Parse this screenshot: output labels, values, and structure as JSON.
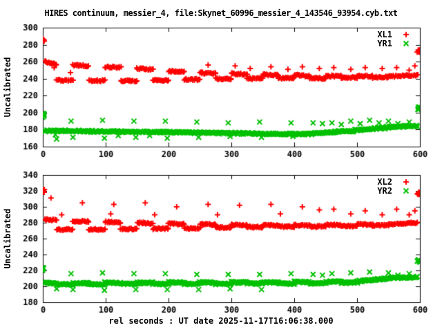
{
  "title": "HIRES continuum, messier_4, file:Skynet_60996_messier_4_143546_93954.cyb.txt",
  "xlabel": "rel seconds : UT date 2025-11-17T16:06:38.000",
  "background": "#ffffff",
  "text_color": "#000000",
  "chart_data": [
    {
      "type": "scatter",
      "panel": "top",
      "ylabel": "Uncalibrated",
      "xlim": [
        0,
        600
      ],
      "ylim": [
        160,
        300
      ],
      "xticks": [
        0,
        100,
        200,
        300,
        400,
        500,
        600
      ],
      "yticks": [
        160,
        180,
        200,
        220,
        240,
        260,
        280,
        300
      ],
      "grid": false,
      "legend_position": "top-right-inside",
      "series": [
        {
          "name": "XL1",
          "marker": "plus",
          "color": "#ff0000",
          "plateaus": [
            [
              3,
              22,
              260,
              257
            ],
            [
              22,
              48,
              238,
              238
            ],
            [
              48,
              73,
              256,
              255
            ],
            [
              73,
              99,
              237.5,
              237.5
            ],
            [
              99,
              124,
              254,
              253
            ],
            [
              124,
              150,
              237.5,
              237.5
            ],
            [
              150,
              175,
              252,
              251
            ],
            [
              175,
              200,
              238,
              238
            ],
            [
              200,
              225,
              249,
              248
            ],
            [
              225,
              250,
              239,
              239
            ],
            [
              250,
              275,
              247,
              246
            ],
            [
              275,
              300,
              240,
              240
            ],
            [
              300,
              325,
              246,
              245
            ],
            [
              325,
              350,
              240,
              240
            ],
            [
              350,
              375,
              245,
              244
            ],
            [
              375,
              400,
              240.5,
              240.5
            ],
            [
              400,
              425,
              244,
              243
            ],
            [
              425,
              450,
              240.5,
              240.5
            ],
            [
              450,
              475,
              243,
              243
            ],
            [
              475,
              500,
              241,
              241
            ],
            [
              500,
              525,
              243,
              243
            ],
            [
              525,
              550,
              241.5,
              242
            ],
            [
              550,
              596,
              242.5,
              244
            ]
          ],
          "outliers": [
            [
              18,
              253
            ],
            [
              44,
              247
            ],
            [
              263,
              256
            ],
            [
              306,
              255
            ],
            [
              330,
              252
            ],
            [
              363,
              254
            ],
            [
              390,
              251
            ],
            [
              413,
              254
            ],
            [
              440,
              252
            ],
            [
              463,
              253
            ],
            [
              490,
              251
            ],
            [
              513,
              253
            ],
            [
              540,
              252
            ],
            [
              563,
              253
            ],
            [
              583,
              250
            ],
            [
              592,
              255
            ]
          ],
          "clusters": [
            [
              1,
              285,
              6,
              1.5,
              2.2
            ],
            [
              598,
              272,
              10,
              2.5,
              1.8
            ]
          ]
        },
        {
          "name": "YR1",
          "marker": "cross",
          "color": "#00c000",
          "plateaus": [
            [
              3,
              60,
              178.5,
              178.5
            ],
            [
              60,
              120,
              178,
              178
            ],
            [
              120,
              200,
              177.5,
              177
            ],
            [
              200,
              280,
              177,
              176
            ],
            [
              280,
              360,
              176,
              175
            ],
            [
              360,
              430,
              175,
              175
            ],
            [
              430,
              465,
              176,
              177
            ],
            [
              465,
              495,
              177.5,
              178.5
            ],
            [
              495,
              520,
              179.5,
              180.5
            ],
            [
              520,
              548,
              181,
              182
            ],
            [
              548,
              575,
              183,
              183.5
            ],
            [
              575,
              596,
              184,
              184
            ]
          ],
          "outliers": [
            [
              45,
              190
            ],
            [
              20,
              174
            ],
            [
              22,
              169
            ],
            [
              48,
              171
            ],
            [
              95,
              191
            ],
            [
              98,
              170
            ],
            [
              120,
              173
            ],
            [
              145,
              190
            ],
            [
              148,
              171
            ],
            [
              170,
              173
            ],
            [
              195,
              190
            ],
            [
              198,
              170
            ],
            [
              245,
              189
            ],
            [
              248,
              171
            ],
            [
              295,
              188
            ],
            [
              298,
              172
            ],
            [
              345,
              189
            ],
            [
              348,
              171
            ],
            [
              395,
              188
            ],
            [
              398,
              172
            ],
            [
              430,
              188
            ],
            [
              445,
              187
            ],
            [
              460,
              188
            ],
            [
              475,
              186
            ],
            [
              490,
              190
            ],
            [
              505,
              187
            ],
            [
              520,
              191
            ],
            [
              535,
              188
            ],
            [
              550,
              190
            ],
            [
              565,
              187
            ],
            [
              583,
              189
            ]
          ],
          "clusters": [
            [
              1,
              197,
              7,
              1.8,
              2.5
            ],
            [
              598,
              205,
              8,
              2.2,
              1.8
            ]
          ]
        }
      ]
    },
    {
      "type": "scatter",
      "panel": "bottom",
      "ylabel": "Uncalibrated",
      "xlim": [
        0,
        600
      ],
      "ylim": [
        180,
        340
      ],
      "xticks": [
        0,
        100,
        200,
        300,
        400,
        500,
        600
      ],
      "yticks": [
        180,
        200,
        220,
        240,
        260,
        280,
        300,
        320,
        340
      ],
      "grid": false,
      "legend_position": "top-right-inside",
      "series": [
        {
          "name": "XL2",
          "marker": "plus",
          "color": "#ff0000",
          "plateaus": [
            [
              3,
              22,
              284,
              283
            ],
            [
              22,
              48,
              271.5,
              271.5
            ],
            [
              48,
              73,
              282,
              281.5
            ],
            [
              73,
              99,
              271.5,
              271.5
            ],
            [
              99,
              124,
              281,
              280
            ],
            [
              124,
              150,
              272,
              272
            ],
            [
              150,
              175,
              280,
              279
            ],
            [
              175,
              200,
              272.5,
              272.5
            ],
            [
              200,
              225,
              279,
              278
            ],
            [
              225,
              250,
              273,
              273
            ],
            [
              250,
              275,
              278,
              277.5
            ],
            [
              275,
              300,
              274,
              274
            ],
            [
              300,
              325,
              277.5,
              277
            ],
            [
              325,
              350,
              274.5,
              274.5
            ],
            [
              350,
              375,
              277,
              276.5
            ],
            [
              375,
              400,
              275,
              275
            ],
            [
              400,
              425,
              277,
              276.5
            ],
            [
              425,
              450,
              275,
              275.5
            ],
            [
              450,
              475,
              277.5,
              277
            ],
            [
              475,
              500,
              276,
              276
            ],
            [
              500,
              525,
              278,
              277.5
            ],
            [
              525,
              550,
              276.5,
              277
            ],
            [
              550,
              596,
              278,
              280
            ]
          ],
          "outliers": [
            [
              13,
              311
            ],
            [
              30,
              290
            ],
            [
              63,
              305
            ],
            [
              108,
              291
            ],
            [
              113,
              303
            ],
            [
              163,
              305
            ],
            [
              178,
              290
            ],
            [
              213,
              300
            ],
            [
              263,
              303
            ],
            [
              278,
              290
            ],
            [
              313,
              302
            ],
            [
              363,
              303
            ],
            [
              378,
              291
            ],
            [
              413,
              300
            ],
            [
              440,
              296
            ],
            [
              463,
              297
            ],
            [
              490,
              291
            ],
            [
              513,
              295
            ],
            [
              540,
              290
            ],
            [
              563,
              297
            ],
            [
              583,
              290
            ],
            [
              592,
              295
            ]
          ],
          "clusters": [
            [
              1,
              320,
              6,
              1.5,
              2.2
            ],
            [
              598,
              317,
              10,
              2.5,
              1.8
            ]
          ]
        },
        {
          "name": "YR2",
          "marker": "cross",
          "color": "#00c000",
          "plateaus": [
            [
              3,
              22,
              204,
              204
            ],
            [
              22,
              48,
              202.5,
              202.5
            ],
            [
              48,
              73,
              204,
              204
            ],
            [
              73,
              99,
              202.5,
              202.5
            ],
            [
              99,
              124,
              204.5,
              204
            ],
            [
              124,
              150,
              203,
              203
            ],
            [
              150,
              175,
              204.5,
              204.5
            ],
            [
              175,
              200,
              203,
              203
            ],
            [
              200,
              225,
              205,
              204.5
            ],
            [
              225,
              250,
              203,
              203
            ],
            [
              250,
              275,
              205,
              204.5
            ],
            [
              275,
              300,
              203,
              203
            ],
            [
              300,
              325,
              205,
              205
            ],
            [
              325,
              350,
              203.5,
              203.5
            ],
            [
              350,
              375,
              205,
              205
            ],
            [
              375,
              400,
              203.5,
              203.5
            ],
            [
              400,
              425,
              205.5,
              205
            ],
            [
              425,
              450,
              203.5,
              204
            ],
            [
              450,
              475,
              206,
              206
            ],
            [
              475,
              500,
              204.5,
              205
            ],
            [
              500,
              520,
              206.5,
              207.5
            ],
            [
              520,
              545,
              208,
              209.5
            ],
            [
              545,
              570,
              210,
              211
            ],
            [
              570,
              596,
              211,
              211.5
            ]
          ],
          "outliers": [
            [
              45,
              216
            ],
            [
              22,
              197
            ],
            [
              48,
              196
            ],
            [
              95,
              217
            ],
            [
              98,
              195
            ],
            [
              145,
              216
            ],
            [
              148,
              196
            ],
            [
              195,
              216
            ],
            [
              198,
              196
            ],
            [
              245,
              215
            ],
            [
              248,
              196
            ],
            [
              295,
              215
            ],
            [
              298,
              197
            ],
            [
              345,
              215
            ],
            [
              348,
              196
            ],
            [
              395,
              216
            ],
            [
              430,
              215
            ],
            [
              445,
              214
            ],
            [
              460,
              216
            ],
            [
              490,
              217
            ],
            [
              520,
              218
            ],
            [
              550,
              217
            ],
            [
              565,
              214
            ],
            [
              583,
              216
            ]
          ],
          "clusters": [
            [
              1,
              222,
              6,
              1.8,
              2.2
            ],
            [
              598,
              232,
              8,
              2.2,
              1.8
            ]
          ]
        }
      ]
    }
  ]
}
